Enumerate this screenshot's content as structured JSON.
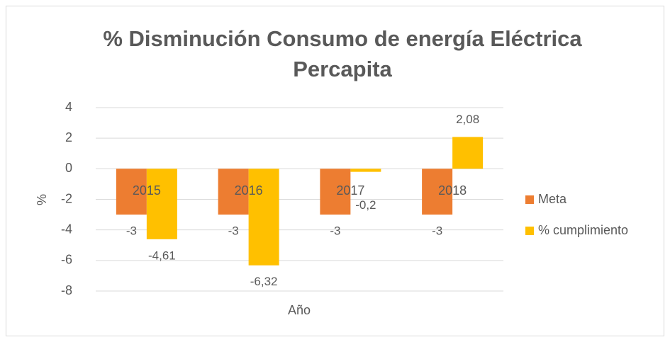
{
  "chart_data": {
    "type": "bar",
    "title": "% Disminución Consumo de energía Eléctrica Percapita",
    "x_label": "Año",
    "y_label": "%",
    "categories": [
      "2015",
      "2016",
      "2017",
      "2018"
    ],
    "series": [
      {
        "name": "Meta",
        "color": "#ed7d31",
        "values": [
          -3,
          -3,
          -3,
          -3
        ]
      },
      {
        "name": "% cumplimiento",
        "color": "#ffc000",
        "values": [
          -4.61,
          -6.32,
          -0.2,
          2.08
        ],
        "value_labels": [
          "-4,61",
          "-6,32",
          "-0,2",
          "2,08"
        ]
      }
    ],
    "ylim": [
      -8,
      4
    ],
    "yticks": [
      -8,
      -6,
      -4,
      -2,
      0,
      2,
      4
    ],
    "grid": true,
    "legend": "right"
  }
}
